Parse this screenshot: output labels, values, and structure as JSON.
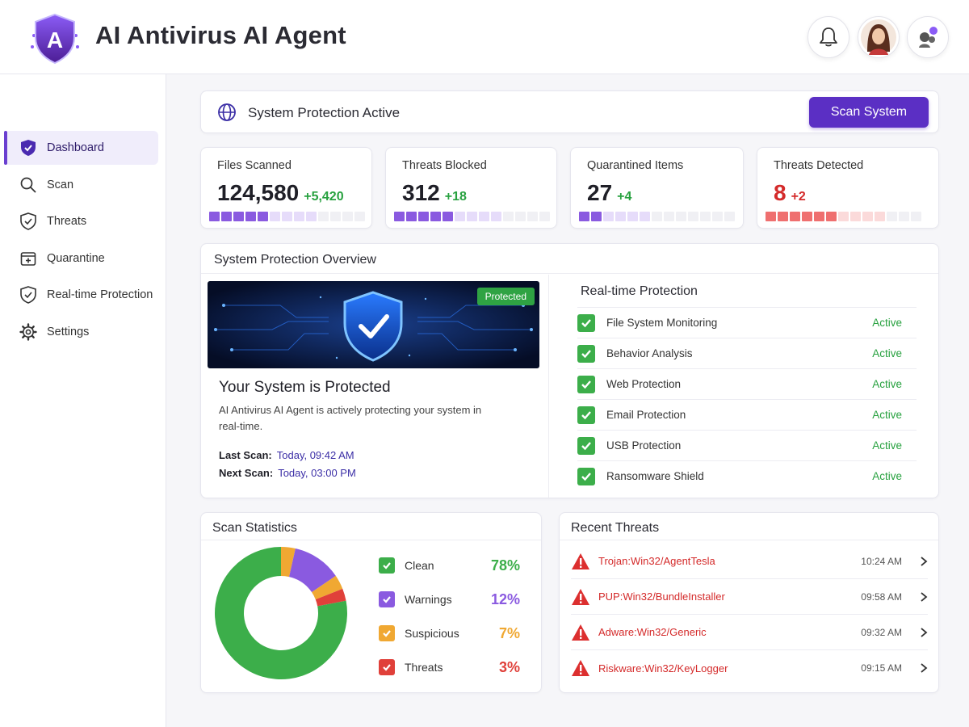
{
  "app": {
    "title": "AI Antivirus AI Agent",
    "logo_letter": "A"
  },
  "header": {
    "icons": [
      "bell-icon",
      "avatar",
      "assistant-icon"
    ]
  },
  "sidebar": {
    "items": [
      {
        "label": "Dashboard",
        "icon": "shield-icon",
        "active": true
      },
      {
        "label": "Scan",
        "icon": "search-icon"
      },
      {
        "label": "Threats",
        "icon": "shield-check-icon"
      },
      {
        "label": "Quarantine",
        "icon": "quarantine-box-icon"
      },
      {
        "label": "Real-time Protection",
        "icon": "shield-check-icon"
      },
      {
        "label": "Settings",
        "icon": "gear-icon"
      }
    ]
  },
  "banner": {
    "status": "System Protection Active",
    "scan_button": "Scan System"
  },
  "stats": [
    {
      "label": "Files Scanned",
      "value": "124,580",
      "delta": "+5,420",
      "value_color": "#1f1f27",
      "level": 0.35
    },
    {
      "label": "Threats Blocked",
      "value": "312",
      "delta": "+18",
      "value_color": "#1f1f27",
      "level": 0.35
    },
    {
      "label": "Quarantined Items",
      "value": "27",
      "delta": "+4",
      "value_color": "#1f1f27",
      "level": 0.15
    },
    {
      "label": "Threats Detected",
      "value": "8",
      "delta": "+2",
      "value_color": "#d42a2a",
      "level": 0.45
    }
  ],
  "overview": {
    "title": "System Protection Overview",
    "badge": "Protected",
    "heading": "Your System is Protected",
    "description": "AI Antivirus AI Agent is actively protecting your system in real-time.",
    "last_scan_label": "Last Scan:",
    "last_scan_value": "Today,  09:42 AM",
    "next_scan_label": "Next Scan:",
    "next_scan_value": "Today,  03:00 PM"
  },
  "realtime": {
    "title": "Real-time Protection",
    "items": [
      {
        "label": "File System Monitoring",
        "status": "Active"
      },
      {
        "label": "Behavior Analysis",
        "status": "Active"
      },
      {
        "label": "Web Protection",
        "status": "Active"
      },
      {
        "label": "Email Protection",
        "status": "Active"
      },
      {
        "label": "USB Protection",
        "status": "Active"
      },
      {
        "label": "Ransomware Shield",
        "status": "Active"
      }
    ]
  },
  "scan_stats": {
    "title": "Scan Statistics",
    "items": [
      {
        "label": "Clean",
        "pct": "78%",
        "color": "#3cae4a"
      },
      {
        "label": "Warnings",
        "pct": "12%",
        "color": "#8a5ae0"
      },
      {
        "label": "Suspicious",
        "pct": "7%",
        "color": "#f0a832"
      },
      {
        "label": "Threats",
        "pct": "3%",
        "color": "#e0403a"
      }
    ]
  },
  "chart_data": {
    "type": "pie",
    "categories": [
      "Clean",
      "Warnings",
      "Suspicious",
      "Threats"
    ],
    "values": [
      78,
      12,
      7,
      3
    ],
    "title": "Scan Statistics"
  },
  "recent_threats": {
    "title": "Recent Threats",
    "items": [
      {
        "name": "Trojan:Win32/AgentTesla",
        "time": "10:24 AM"
      },
      {
        "name": "PUP:Win32/BundleInstaller",
        "time": "09:58 AM"
      },
      {
        "name": "Adware:Win32/Generic",
        "time": "09:32 AM"
      },
      {
        "name": "Riskware:Win32/KeyLogger",
        "time": "09:15 AM"
      }
    ]
  }
}
